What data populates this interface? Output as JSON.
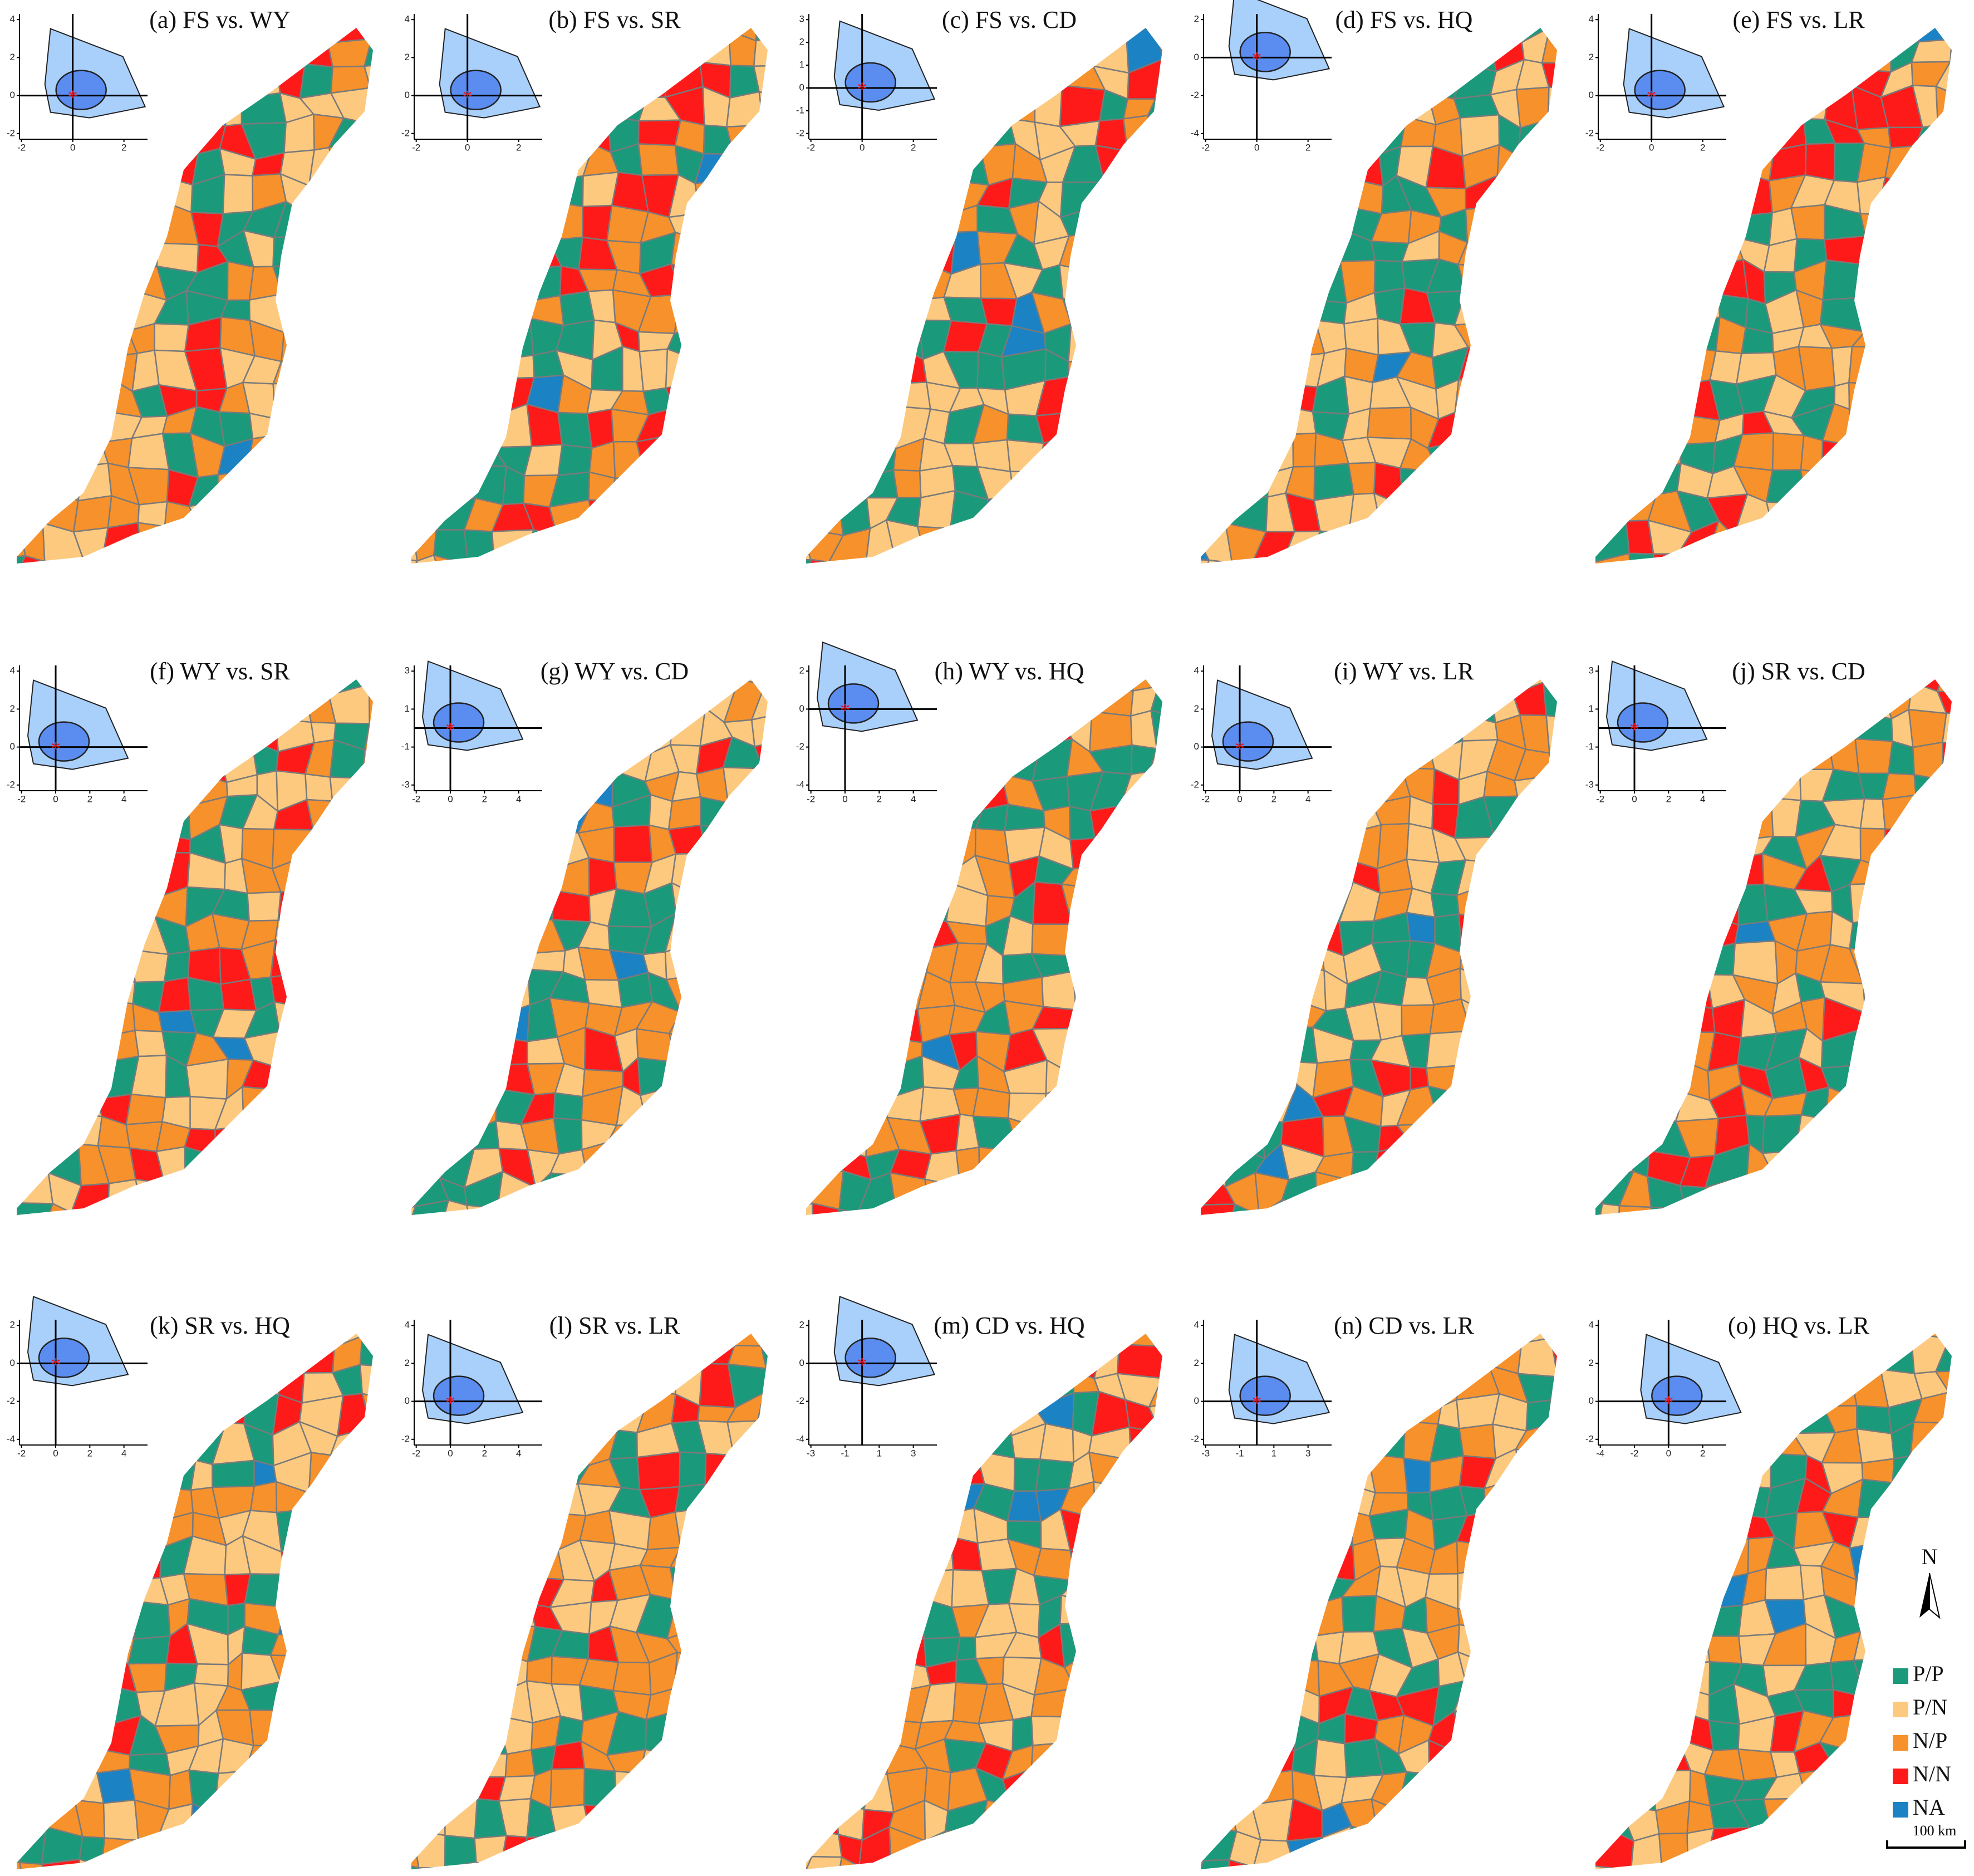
{
  "panels": [
    {
      "title": "(a) FS vs. WY",
      "xticks": [
        -2,
        0,
        2
      ],
      "yticks": [
        -2,
        0,
        2,
        4
      ]
    },
    {
      "title": "(b) FS vs. SR",
      "xticks": [
        -2,
        0,
        2
      ],
      "yticks": [
        -2,
        0,
        2,
        4
      ]
    },
    {
      "title": "(c) FS vs. CD",
      "xticks": [
        -2,
        0,
        2
      ],
      "yticks": [
        -2,
        -1,
        0,
        1,
        2,
        3
      ]
    },
    {
      "title": "(d) FS vs. HQ",
      "xticks": [
        -2,
        0,
        2
      ],
      "yticks": [
        -4,
        -2,
        0,
        2
      ]
    },
    {
      "title": "(e) FS vs. LR",
      "xticks": [
        -2,
        0,
        2
      ],
      "yticks": [
        -2,
        0,
        2,
        4
      ]
    },
    {
      "title": "(f) WY vs. SR",
      "xticks": [
        -2,
        0,
        2,
        4
      ],
      "yticks": [
        -2,
        0,
        2,
        4
      ]
    },
    {
      "title": "(g) WY vs. CD",
      "xticks": [
        -2,
        0,
        2,
        4
      ],
      "yticks": [
        -3,
        -1,
        1,
        3
      ]
    },
    {
      "title": "(h) WY vs. HQ",
      "xticks": [
        -2,
        0,
        2,
        4
      ],
      "yticks": [
        -4,
        -2,
        0,
        2
      ]
    },
    {
      "title": "(i) WY vs. LR",
      "xticks": [
        -2,
        0,
        2,
        4
      ],
      "yticks": [
        -2,
        0,
        2,
        4
      ]
    },
    {
      "title": "(j) SR vs. CD",
      "xticks": [
        -2,
        0,
        2,
        4
      ],
      "yticks": [
        -3,
        -1,
        1,
        3
      ]
    },
    {
      "title": "(k) SR vs. HQ",
      "xticks": [
        -2,
        0,
        2,
        4
      ],
      "yticks": [
        -4,
        -2,
        0,
        2
      ]
    },
    {
      "title": "(l) SR vs. LR",
      "xticks": [
        -2,
        0,
        2,
        4
      ],
      "yticks": [
        -2,
        0,
        2,
        4
      ]
    },
    {
      "title": "(m) CD vs. HQ",
      "xticks": [
        -3,
        -1,
        1,
        3
      ],
      "yticks": [
        -4,
        -2,
        0,
        2
      ]
    },
    {
      "title": "(n) CD vs. LR",
      "xticks": [
        -3,
        -1,
        1,
        3
      ],
      "yticks": [
        -2,
        0,
        2,
        4
      ]
    },
    {
      "title": "(o) HQ vs. LR",
      "xticks": [
        -4,
        -2,
        0,
        2
      ],
      "yticks": [
        -2,
        0,
        2,
        4
      ]
    }
  ],
  "legend": {
    "items": [
      {
        "label": "P/P",
        "color": "#1a9a7a"
      },
      {
        "label": "P/N",
        "color": "#fdc97f"
      },
      {
        "label": "N/P",
        "color": "#f7912b"
      },
      {
        "label": "N/N",
        "color": "#ff1a1a"
      },
      {
        "label": "NA",
        "color": "#1b82c4"
      }
    ]
  },
  "north": "N",
  "scale_bar": "100 km"
}
